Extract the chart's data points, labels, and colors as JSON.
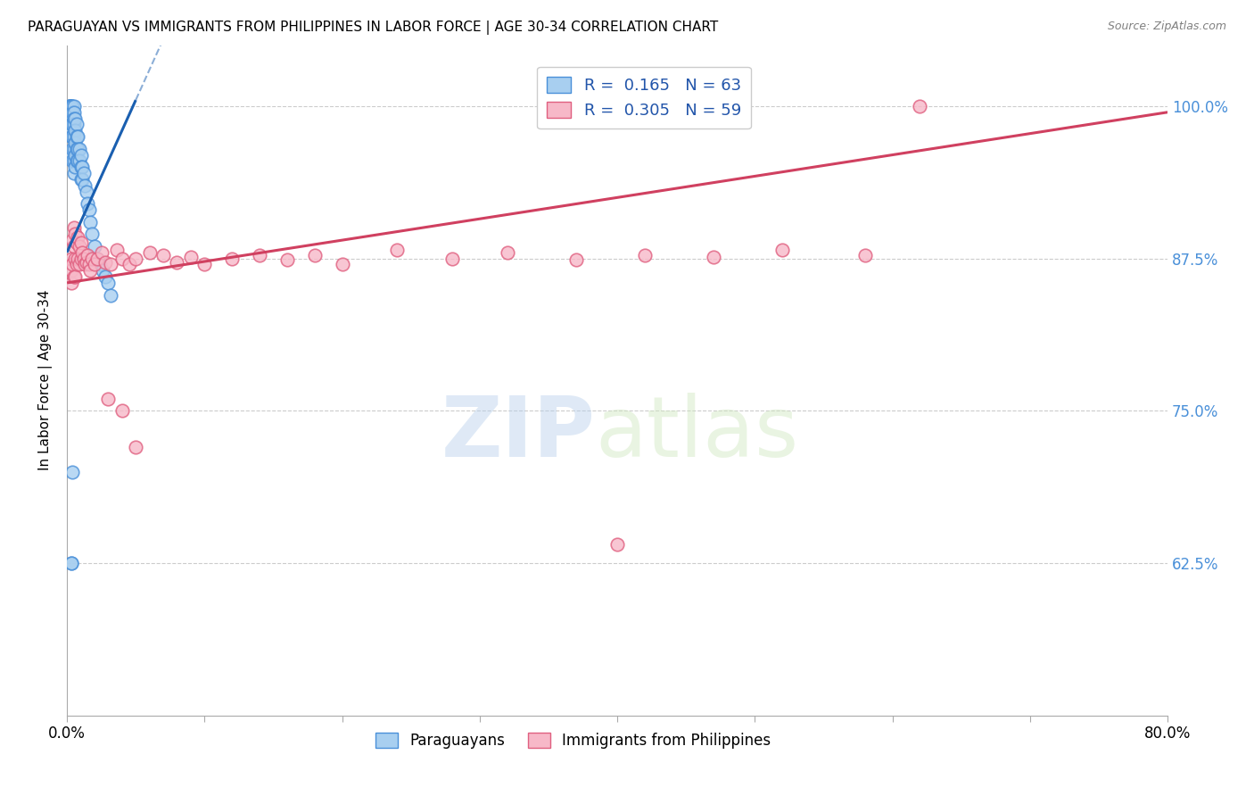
{
  "title": "PARAGUAYAN VS IMMIGRANTS FROM PHILIPPINES IN LABOR FORCE | AGE 30-34 CORRELATION CHART",
  "source": "Source: ZipAtlas.com",
  "ylabel": "In Labor Force | Age 30-34",
  "xlim": [
    0.0,
    0.8
  ],
  "ylim": [
    0.5,
    1.05
  ],
  "xticks": [
    0.0,
    0.1,
    0.2,
    0.3,
    0.4,
    0.5,
    0.6,
    0.7,
    0.8
  ],
  "xticklabels": [
    "0.0%",
    "",
    "",
    "",
    "",
    "",
    "",
    "",
    "80.0%"
  ],
  "yticks": [
    0.625,
    0.75,
    0.875,
    1.0
  ],
  "yticklabels": [
    "62.5%",
    "75.0%",
    "87.5%",
    "100.0%"
  ],
  "blue_R": 0.165,
  "blue_N": 63,
  "pink_R": 0.305,
  "pink_N": 59,
  "blue_fill": "#a8cff0",
  "pink_fill": "#f7b8c8",
  "blue_edge": "#4a90d9",
  "pink_edge": "#e06080",
  "blue_line_color": "#1a5fb0",
  "pink_line_color": "#d04060",
  "watermark_zip": "ZIP",
  "watermark_atlas": "atlas",
  "legend_label_blue": "Paraguayans",
  "legend_label_pink": "Immigrants from Philippines",
  "blue_scatter_x": [
    0.002,
    0.002,
    0.002,
    0.002,
    0.002,
    0.002,
    0.003,
    0.003,
    0.003,
    0.003,
    0.003,
    0.003,
    0.003,
    0.004,
    0.004,
    0.004,
    0.004,
    0.004,
    0.004,
    0.005,
    0.005,
    0.005,
    0.005,
    0.005,
    0.005,
    0.005,
    0.005,
    0.006,
    0.006,
    0.006,
    0.006,
    0.006,
    0.007,
    0.007,
    0.007,
    0.007,
    0.008,
    0.008,
    0.008,
    0.009,
    0.009,
    0.01,
    0.01,
    0.01,
    0.011,
    0.011,
    0.012,
    0.013,
    0.014,
    0.015,
    0.016,
    0.017,
    0.018,
    0.02,
    0.022,
    0.024,
    0.026,
    0.028,
    0.03,
    0.032,
    0.004,
    0.003,
    0.003
  ],
  "blue_scatter_y": [
    1.0,
    1.0,
    1.0,
    1.0,
    0.99,
    0.98,
    1.0,
    1.0,
    0.995,
    0.99,
    0.985,
    0.975,
    0.96,
    1.0,
    0.995,
    0.985,
    0.975,
    0.965,
    0.955,
    1.0,
    0.995,
    0.99,
    0.985,
    0.975,
    0.965,
    0.955,
    0.945,
    0.99,
    0.98,
    0.97,
    0.96,
    0.95,
    0.985,
    0.975,
    0.965,
    0.955,
    0.975,
    0.965,
    0.955,
    0.965,
    0.955,
    0.96,
    0.95,
    0.94,
    0.95,
    0.94,
    0.945,
    0.935,
    0.93,
    0.92,
    0.915,
    0.905,
    0.895,
    0.885,
    0.875,
    0.87,
    0.865,
    0.86,
    0.855,
    0.845,
    0.7,
    0.625,
    0.625
  ],
  "pink_scatter_x": [
    0.003,
    0.003,
    0.003,
    0.004,
    0.004,
    0.005,
    0.005,
    0.005,
    0.006,
    0.006,
    0.006,
    0.007,
    0.007,
    0.008,
    0.008,
    0.009,
    0.009,
    0.01,
    0.01,
    0.011,
    0.012,
    0.013,
    0.014,
    0.015,
    0.016,
    0.017,
    0.018,
    0.02,
    0.022,
    0.025,
    0.028,
    0.032,
    0.036,
    0.04,
    0.045,
    0.05,
    0.06,
    0.07,
    0.08,
    0.09,
    0.1,
    0.12,
    0.14,
    0.16,
    0.18,
    0.2,
    0.24,
    0.28,
    0.32,
    0.37,
    0.42,
    0.47,
    0.52,
    0.58,
    0.03,
    0.04,
    0.05,
    0.62,
    0.4
  ],
  "pink_scatter_y": [
    0.875,
    0.865,
    0.855,
    0.89,
    0.87,
    0.9,
    0.885,
    0.86,
    0.895,
    0.875,
    0.86,
    0.888,
    0.87,
    0.892,
    0.875,
    0.885,
    0.87,
    0.888,
    0.875,
    0.88,
    0.875,
    0.87,
    0.872,
    0.878,
    0.87,
    0.865,
    0.875,
    0.87,
    0.875,
    0.88,
    0.872,
    0.87,
    0.882,
    0.875,
    0.87,
    0.875,
    0.88,
    0.878,
    0.872,
    0.876,
    0.87,
    0.875,
    0.878,
    0.874,
    0.878,
    0.87,
    0.882,
    0.875,
    0.88,
    0.874,
    0.878,
    0.876,
    0.882,
    0.878,
    0.76,
    0.75,
    0.72,
    1.0,
    0.64
  ],
  "blue_trendline_x": [
    0.0,
    0.05
  ],
  "blue_trendline_y": [
    0.88,
    1.005
  ],
  "pink_trendline_x": [
    0.0,
    0.8
  ],
  "pink_trendline_y": [
    0.855,
    0.995
  ]
}
